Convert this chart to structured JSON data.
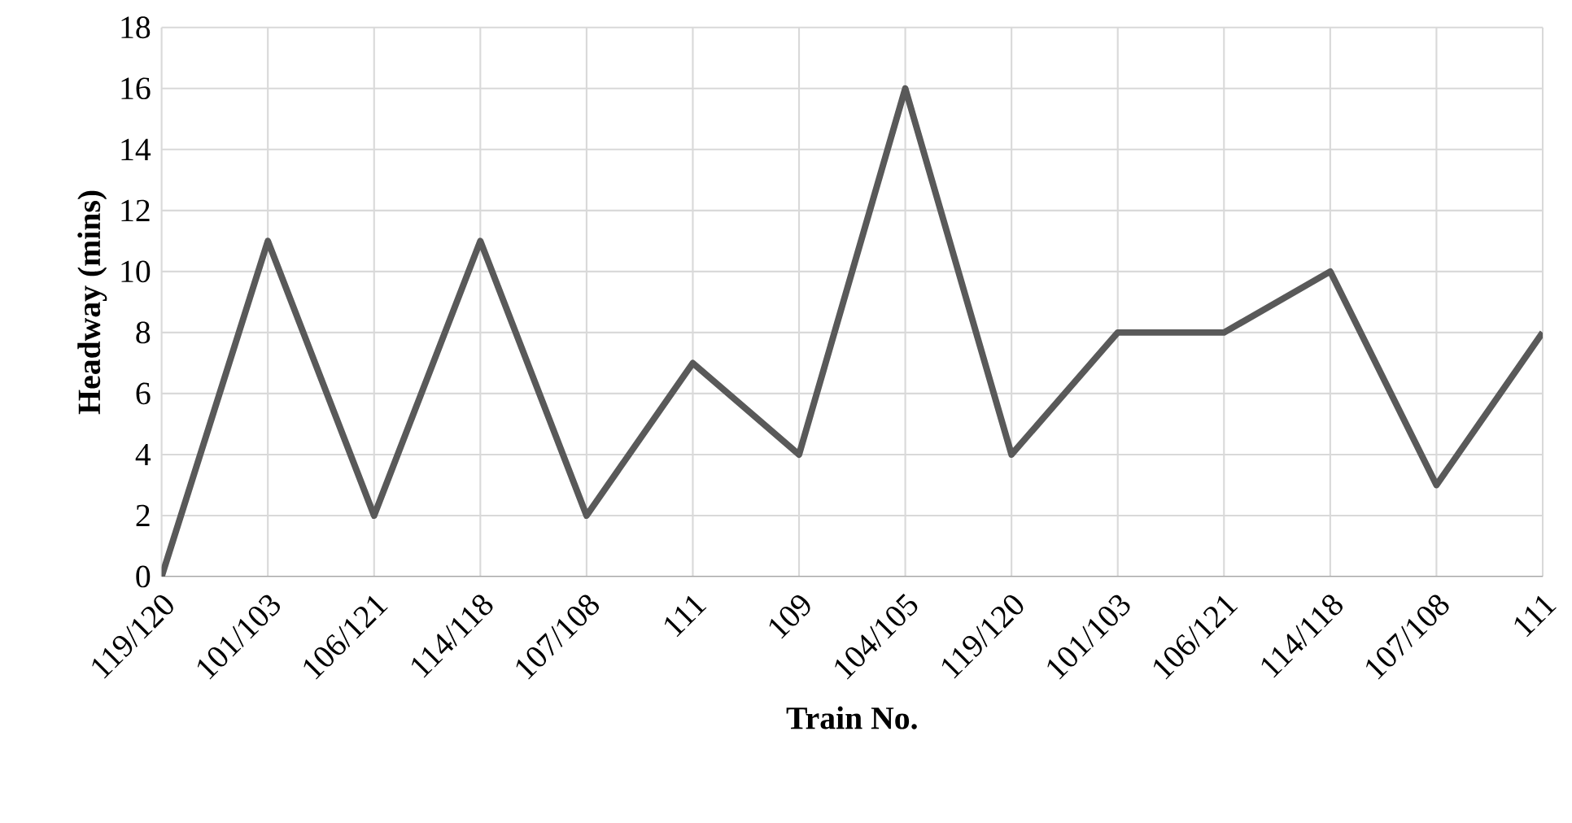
{
  "chart_data": {
    "type": "line",
    "xlabel": "Train  No.",
    "ylabel": "Headway (mins)",
    "categories": [
      "119/120",
      "101/103",
      "106/121",
      "114/118",
      "107/108",
      "111",
      "109",
      "104/105",
      "119/120",
      "101/103",
      "106/121",
      "114/118",
      "107/108",
      "111"
    ],
    "series": [
      {
        "color": "#595959",
        "values": [
          0,
          11,
          2,
          11,
          2,
          7,
          4,
          16,
          4,
          8,
          8,
          10,
          3,
          8
        ]
      }
    ],
    "ylim": [
      0,
      18
    ],
    "yticks": [
      0,
      2,
      4,
      6,
      8,
      10,
      12,
      14,
      16,
      18
    ],
    "grid": true
  }
}
